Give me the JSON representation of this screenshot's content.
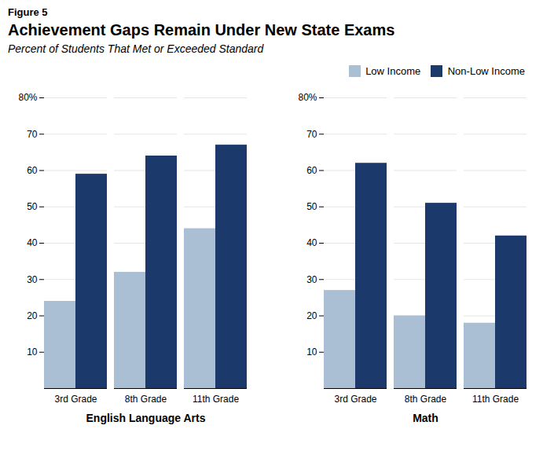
{
  "chart_data": {
    "type": "bar",
    "title": "Achievement Gaps Remain Under New State Exams",
    "subtitle": "Percent of Students That Met or Exceeded Standard",
    "annotations": [
      "Figure 5"
    ],
    "categories": [
      "3rd Grade",
      "8th Grade",
      "11th Grade",
      "3rd Grade",
      "8th Grade",
      "11th Grade"
    ],
    "groups": [
      {
        "name": "English Language Arts",
        "count": 3
      },
      {
        "name": "Math",
        "count": 3
      }
    ],
    "series": [
      {
        "name": "Low Income",
        "color": "#AABFD4",
        "values": [
          24,
          32,
          44,
          27,
          20,
          18
        ]
      },
      {
        "name": "Non-Low Income",
        "color": "#1B3A6B",
        "values": [
          59,
          64,
          67,
          62,
          51,
          42
        ]
      }
    ],
    "ylim": [
      0,
      80
    ],
    "yticks": [
      10,
      20,
      30,
      40,
      50,
      60,
      70,
      {
        "value": 80,
        "label": "80%"
      }
    ],
    "grid": true,
    "legend": "top-right"
  }
}
